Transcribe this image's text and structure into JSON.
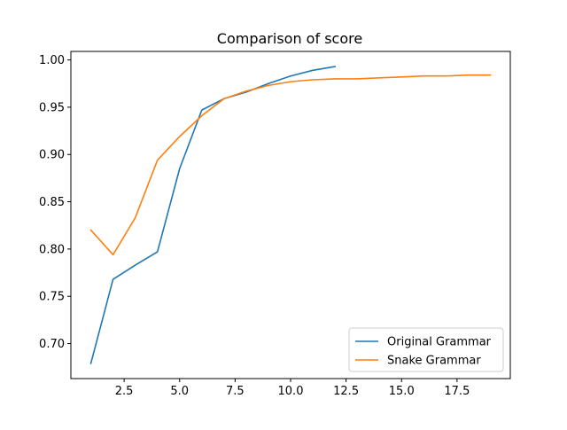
{
  "chart_data": {
    "type": "line",
    "title": "Comparison of score",
    "xlabel": "",
    "ylabel": "",
    "xlim": [
      0.1,
      19.9
    ],
    "ylim": [
      0.663,
      1.009
    ],
    "x_ticks": [
      2.5,
      5.0,
      7.5,
      10.0,
      12.5,
      15.0,
      17.5
    ],
    "x_tick_labels": [
      "2.5",
      "5.0",
      "7.5",
      "10.0",
      "12.5",
      "15.0",
      "17.5"
    ],
    "y_ticks": [
      0.7,
      0.75,
      0.8,
      0.85,
      0.9,
      0.95,
      1.0
    ],
    "y_tick_labels": [
      "0.70",
      "0.75",
      "0.80",
      "0.85",
      "0.90",
      "0.95",
      "1.00"
    ],
    "grid": false,
    "legend_position": "lower-right",
    "series": [
      {
        "name": "Original Grammar",
        "color": "#1f77b4",
        "x": [
          1,
          2,
          3,
          4,
          5,
          6,
          7,
          8,
          9,
          10,
          11,
          12
        ],
        "y": [
          0.679,
          0.768,
          0.783,
          0.797,
          0.885,
          0.947,
          0.959,
          0.966,
          0.975,
          0.983,
          0.989,
          0.993
        ]
      },
      {
        "name": "Snake Grammar",
        "color": "#ff7f0e",
        "x": [
          1,
          2,
          3,
          4,
          5,
          6,
          7,
          8,
          9,
          10,
          11,
          12,
          13,
          14,
          15,
          16,
          17,
          18,
          19
        ],
        "y": [
          0.82,
          0.794,
          0.833,
          0.894,
          0.919,
          0.941,
          0.959,
          0.967,
          0.973,
          0.977,
          0.979,
          0.98,
          0.98,
          0.981,
          0.982,
          0.983,
          0.983,
          0.984,
          0.984
        ]
      }
    ]
  }
}
